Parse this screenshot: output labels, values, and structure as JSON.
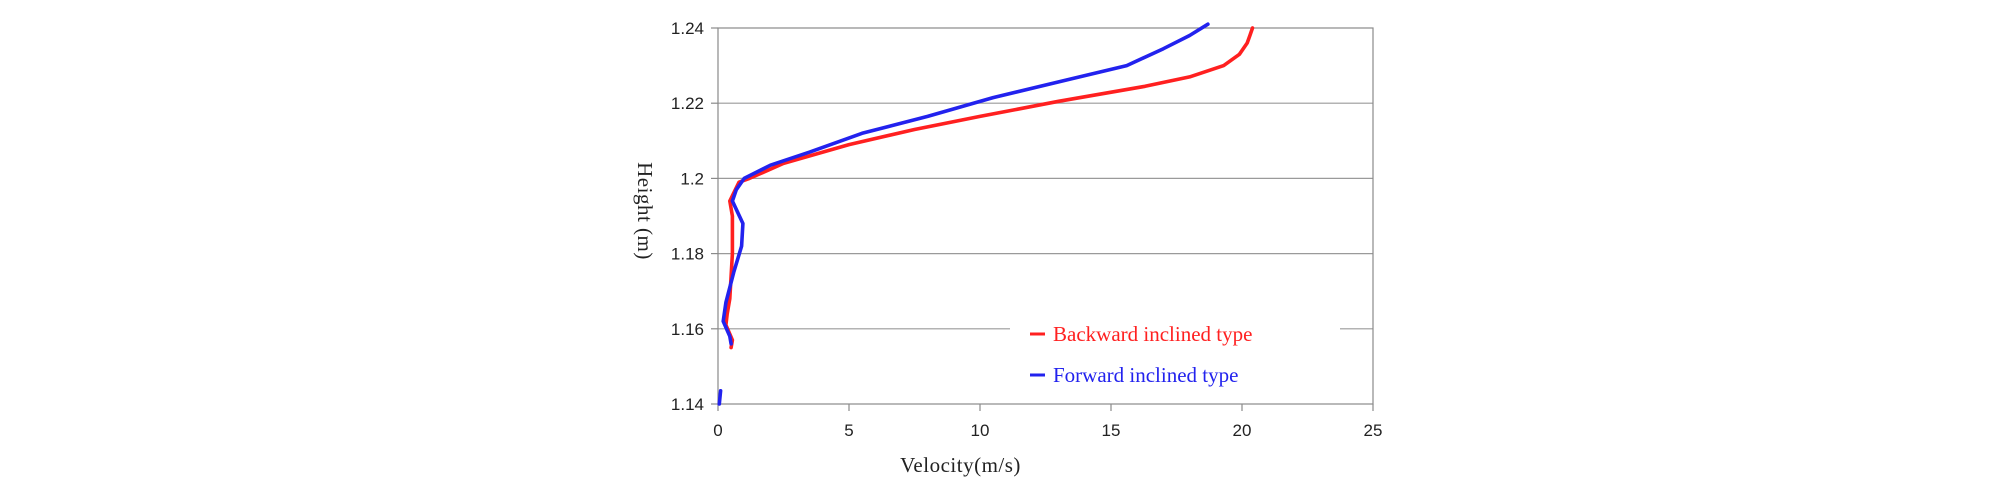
{
  "chart_data": {
    "type": "line",
    "title": "",
    "xlabel": "Velocity(m/s)",
    "ylabel": "Height (m)",
    "xlim": [
      0,
      25
    ],
    "ylim": [
      1.14,
      1.24
    ],
    "x_ticks": [
      "0",
      "5",
      "10",
      "15",
      "20",
      "25"
    ],
    "y_ticks": [
      "1.14",
      "1.16",
      "1.18",
      "1.2",
      "1.22",
      "1.24"
    ],
    "grid": "horizontal",
    "legend_position": "bottom-right",
    "series": [
      {
        "name": "Backward inclined type",
        "color": "#ff2020",
        "points": [
          [
            0.5,
            1.155
          ],
          [
            0.55,
            1.157
          ],
          [
            0.3,
            1.161
          ],
          [
            0.35,
            1.164
          ],
          [
            0.45,
            1.168
          ],
          [
            0.5,
            1.174
          ],
          [
            0.55,
            1.18
          ],
          [
            0.55,
            1.186
          ],
          [
            0.55,
            1.19
          ],
          [
            0.45,
            1.194
          ],
          [
            0.8,
            1.199
          ],
          [
            1.2,
            1.2
          ],
          [
            2.5,
            1.204
          ],
          [
            5,
            1.209
          ],
          [
            7.5,
            1.213
          ],
          [
            10,
            1.2165
          ],
          [
            13,
            1.2205
          ],
          [
            16.3,
            1.2245
          ],
          [
            18,
            1.227
          ],
          [
            19.3,
            1.23
          ],
          [
            19.9,
            1.233
          ],
          [
            20.2,
            1.236
          ],
          [
            20.3,
            1.238
          ],
          [
            20.4,
            1.24
          ]
        ]
      },
      {
        "name": "Forward inclined type",
        "color": "#2222ee",
        "points": [
          [
            0.05,
            1.14
          ],
          [
            0.1,
            1.1435
          ],
          [
            null,
            null
          ],
          [
            0.5,
            1.156
          ],
          [
            0.45,
            1.158
          ],
          [
            0.2,
            1.162
          ],
          [
            0.3,
            1.167
          ],
          [
            0.6,
            1.175
          ],
          [
            0.9,
            1.182
          ],
          [
            0.95,
            1.188
          ],
          [
            0.75,
            1.191
          ],
          [
            0.55,
            1.194
          ],
          [
            0.7,
            1.197
          ],
          [
            1,
            1.2
          ],
          [
            2,
            1.2035
          ],
          [
            3.5,
            1.207
          ],
          [
            5.5,
            1.212
          ],
          [
            8,
            1.2165
          ],
          [
            10.5,
            1.2215
          ],
          [
            13.5,
            1.2265
          ],
          [
            15.6,
            1.23
          ],
          [
            17,
            1.2345
          ],
          [
            18,
            1.238
          ],
          [
            18.7,
            1.241
          ]
        ]
      }
    ]
  }
}
